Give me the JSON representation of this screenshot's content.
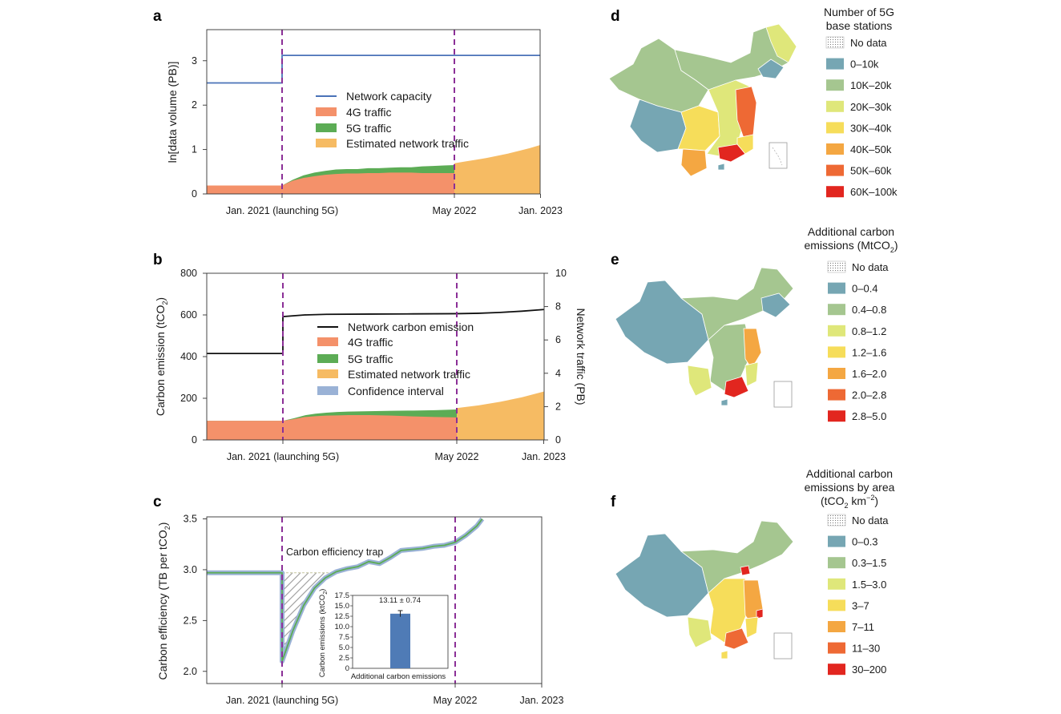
{
  "panels": {
    "a": "a",
    "b": "b",
    "c": "c",
    "d": "d",
    "e": "e",
    "f": "f"
  },
  "colors": {
    "capacity": "#4a72b8",
    "g4": "#f4916a",
    "g5": "#5cac55",
    "est": "#f6bb63",
    "ci": "#9ab2d6",
    "emission_line": "#111111",
    "vline": "#8b2f97",
    "bar": "#4f7bb6"
  },
  "x_tick_labels": [
    "Jan. 2021 (launching 5G)",
    "May 2022",
    "Jan. 2023"
  ],
  "chart_data": [
    {
      "id": "a",
      "type": "area",
      "ylabel": "ln[data volume (PB)]",
      "ylim": [
        0,
        3.7
      ],
      "yticks": [
        0,
        1,
        2,
        3
      ],
      "x": [
        0,
        1,
        1.2,
        1.6,
        2,
        2.4,
        2.8,
        3.2,
        3.6,
        4,
        4.4,
        4.8,
        5.2,
        5.6,
        6.0,
        6.4,
        6.8,
        7.2,
        7.6,
        8.0,
        8.4,
        8.8,
        9.2,
        9.6,
        10,
        10.4,
        10.8,
        11.2,
        11.6,
        12,
        12.4,
        12.8,
        13.2,
        13.6,
        14,
        14.4,
        14.8,
        15.2,
        15.6,
        16,
        16.4,
        16.8,
        17.2,
        17.6,
        18,
        18.4,
        18.8,
        19.2,
        19.6,
        20,
        20.4,
        20.8,
        21.2,
        21.6,
        22,
        22.4,
        22.8,
        23.2,
        23.6,
        24
      ],
      "x_ticks": [
        0,
        16,
        24
      ],
      "series": [
        {
          "name": "Network capacity",
          "kind": "step",
          "x": [
            -9,
            0,
            0,
            24
          ],
          "values": [
            2.5,
            2.5,
            3.12,
            3.12
          ]
        },
        {
          "name": "4G traffic",
          "kind": "area",
          "x": [
            -9,
            0,
            1,
            2,
            3,
            4,
            5,
            6,
            7,
            8,
            9,
            10,
            11,
            12,
            13,
            14,
            15,
            16
          ],
          "values": [
            0.19,
            0.19,
            0.3,
            0.36,
            0.4,
            0.43,
            0.45,
            0.46,
            0.46,
            0.47,
            0.47,
            0.48,
            0.48,
            0.48,
            0.47,
            0.47,
            0.47,
            0.47
          ]
        },
        {
          "name": "5G traffic",
          "kind": "area",
          "x": [
            -9,
            0,
            1,
            2,
            3,
            4,
            5,
            6,
            7,
            8,
            9,
            10,
            11,
            12,
            13,
            14,
            15,
            16
          ],
          "values": [
            0.19,
            0.19,
            0.32,
            0.42,
            0.48,
            0.52,
            0.55,
            0.56,
            0.56,
            0.58,
            0.58,
            0.59,
            0.6,
            0.6,
            0.62,
            0.63,
            0.64,
            0.65
          ]
        },
        {
          "name": "Estimated network traffic",
          "kind": "area",
          "x": [
            16,
            17,
            18,
            19,
            20,
            21,
            22,
            23,
            24
          ],
          "values": [
            0.69,
            0.73,
            0.77,
            0.81,
            0.86,
            0.91,
            0.97,
            1.03,
            1.1
          ]
        }
      ]
    },
    {
      "id": "b",
      "type": "area",
      "ylabel": "Carbon emission (tCO",
      "ylabel_sub": "2",
      "ylabel_close": ")",
      "ylabel_right": "Network traffic (PB)",
      "ylim": [
        0,
        800
      ],
      "yticks": [
        0,
        200,
        400,
        600,
        800
      ],
      "ylim_right": [
        0,
        10
      ],
      "yticks_right": [
        0,
        2,
        4,
        6,
        8,
        10
      ],
      "x_ticks": [
        0,
        16,
        24
      ],
      "series": [
        {
          "name": "Network carbon emission",
          "kind": "line",
          "x": [
            -7,
            0,
            0,
            2,
            4,
            8,
            12,
            16,
            18,
            20,
            22,
            24
          ],
          "values": [
            415,
            415,
            592,
            600,
            603,
            604,
            605,
            606,
            608,
            612,
            618,
            626
          ]
        },
        {
          "name": "4G traffic",
          "kind": "area",
          "x": [
            -7,
            0,
            1,
            2,
            3,
            4,
            5,
            6,
            8,
            10,
            12,
            14,
            16
          ],
          "values": [
            92,
            92,
            100,
            110,
            114,
            117,
            118,
            119,
            119,
            117,
            113,
            110,
            108
          ]
        },
        {
          "name": "5G traffic",
          "kind": "area",
          "x": [
            -7,
            0,
            1,
            2,
            3,
            4,
            5,
            6,
            8,
            10,
            12,
            14,
            16
          ],
          "values": [
            92,
            92,
            104,
            118,
            126,
            131,
            134,
            136,
            138,
            140,
            141,
            143,
            146
          ]
        },
        {
          "name": "Estimated network traffic",
          "kind": "area",
          "x": [
            16,
            18,
            20,
            22,
            24
          ],
          "values": [
            153,
            166,
            183,
            205,
            232
          ]
        },
        {
          "name": "Confidence interval",
          "kind": "legend-only",
          "x": [],
          "values": []
        }
      ]
    },
    {
      "id": "c",
      "type": "line",
      "ylabel": "Carbon efficiency (TB per tCO",
      "ylabel_sub": "2",
      "ylabel_close": ")",
      "ylim": [
        1.88,
        3.52
      ],
      "yticks": [
        "2.0",
        "2.5",
        "3.0",
        "3.5"
      ],
      "ytick_values": [
        2.0,
        2.5,
        3.0,
        3.5
      ],
      "x_ticks": [
        0,
        16,
        24
      ],
      "annotation": "Carbon efficiency trap",
      "series": [
        {
          "name": "Carbon efficiency",
          "kind": "line",
          "x": [
            -7,
            0,
            0,
            1,
            2,
            3,
            4,
            5,
            6,
            7,
            8,
            9,
            10,
            11,
            12,
            13,
            14,
            15,
            16,
            17,
            18,
            18.5
          ],
          "values": [
            2.97,
            2.97,
            2.1,
            2.4,
            2.65,
            2.82,
            2.92,
            2.98,
            3.01,
            3.03,
            3.08,
            3.06,
            3.12,
            3.19,
            3.2,
            3.21,
            3.23,
            3.24,
            3.27,
            3.34,
            3.43,
            3.5
          ]
        }
      ],
      "inset": {
        "type": "bar",
        "title": "13.11 ± 0.74",
        "categories": [
          "Additional carbon emissions"
        ],
        "values": [
          13.11
        ],
        "error": [
          0.74
        ],
        "ylabel": "Carbon emissions (ktCO",
        "ylabel_sub": "2",
        "ylabel_close": ")",
        "ylim": [
          0,
          17.5
        ],
        "yticks": [
          "0",
          "2.5",
          "5.0",
          "7.5",
          "10.0",
          "12.5",
          "15.0",
          "17.5"
        ],
        "ytick_values": [
          0,
          2.5,
          5.0,
          7.5,
          10.0,
          12.5,
          15.0,
          17.5
        ]
      }
    }
  ],
  "maps": [
    {
      "id": "d",
      "title_lines": [
        "Number of 5G",
        "base stations"
      ],
      "legend": [
        {
          "label": "No data",
          "color": "nodata"
        },
        {
          "label": "0–10k",
          "color": "#76a6b3"
        },
        {
          "label": "10K–20k",
          "color": "#a5c690"
        },
        {
          "label": "20K–30k",
          "color": "#dfe77a"
        },
        {
          "label": "30K–40k",
          "color": "#f6dd5a"
        },
        {
          "label": "40K–50k",
          "color": "#f4a742"
        },
        {
          "label": "50K–60k",
          "color": "#ee6934"
        },
        {
          "label": "60K–100k",
          "color": "#e2261f"
        }
      ]
    },
    {
      "id": "e",
      "title_lines": [
        "Additional carbon",
        "emissions (MtCO"
      ],
      "title_sub": "2",
      "title_close": ")",
      "legend": [
        {
          "label": "No data",
          "color": "nodata"
        },
        {
          "label": "0–0.4",
          "color": "#76a6b3"
        },
        {
          "label": "0.4–0.8",
          "color": "#a5c690"
        },
        {
          "label": "0.8–1.2",
          "color": "#dfe77a"
        },
        {
          "label": "1.2–1.6",
          "color": "#f6dd5a"
        },
        {
          "label": "1.6–2.0",
          "color": "#f4a742"
        },
        {
          "label": "2.0–2.8",
          "color": "#ee6934"
        },
        {
          "label": "2.8–5.0",
          "color": "#e2261f"
        }
      ]
    },
    {
      "id": "f",
      "title_lines": [
        "Additional carbon",
        "emissions by area",
        "(tCO"
      ],
      "title_sub": "2",
      "title_close": " km",
      "title_sup": "−2",
      "title_end": ")",
      "legend": [
        {
          "label": "No data",
          "color": "nodata"
        },
        {
          "label": "0–0.3",
          "color": "#76a6b3"
        },
        {
          "label": "0.3–1.5",
          "color": "#a5c690"
        },
        {
          "label": "1.5–3.0",
          "color": "#dfe77a"
        },
        {
          "label": "3–7",
          "color": "#f6dd5a"
        },
        {
          "label": "7–11",
          "color": "#f4a742"
        },
        {
          "label": "11–30",
          "color": "#ee6934"
        },
        {
          "label": "30–200",
          "color": "#e2261f"
        }
      ]
    }
  ]
}
